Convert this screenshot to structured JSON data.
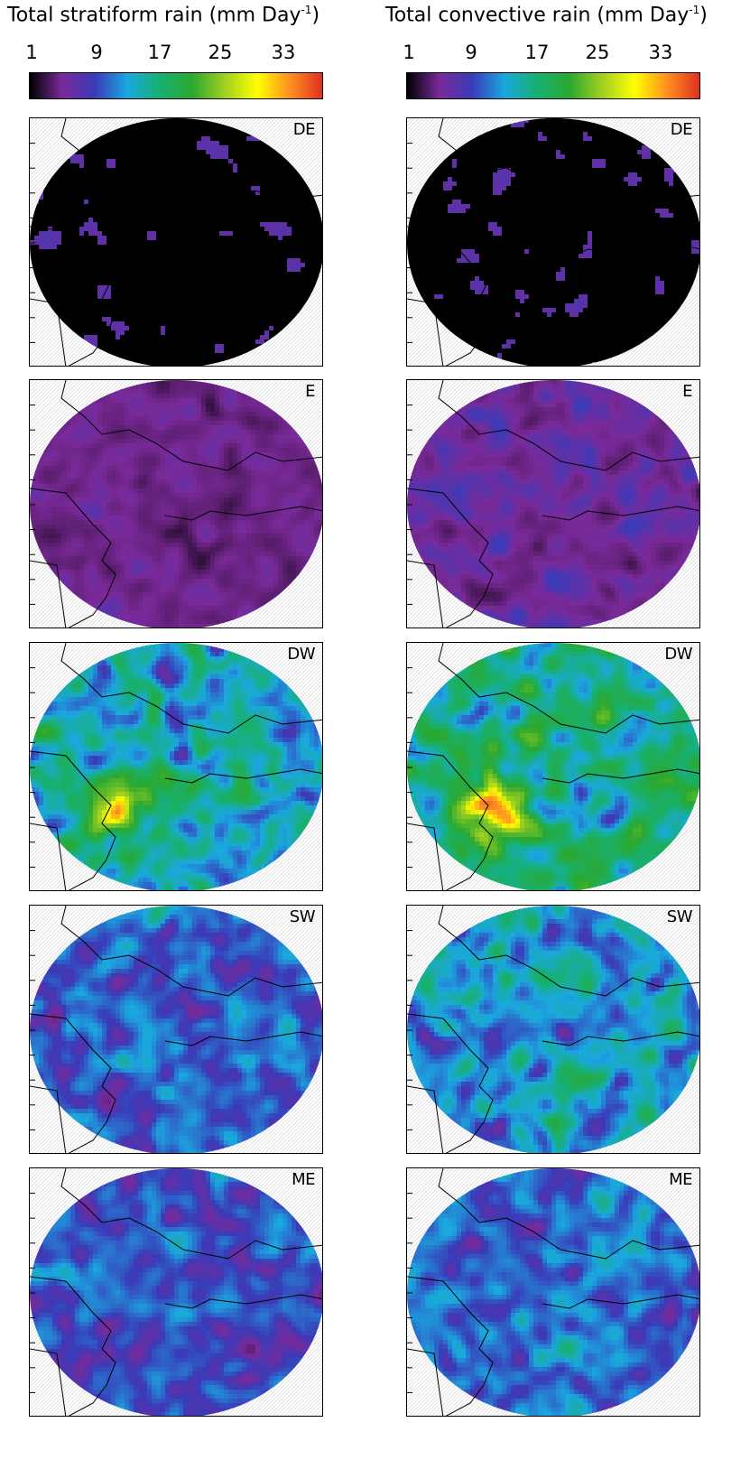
{
  "chart_data": {
    "type": "heatmap",
    "colorbar": {
      "ticks": [
        "1",
        "9",
        "17",
        "25",
        "33"
      ],
      "tick_values": [
        1,
        9,
        17,
        25,
        33
      ],
      "range": [
        1,
        39
      ],
      "colors": [
        "#000000",
        "#7a2a9a",
        "#3a3ab8",
        "#1aa8e0",
        "#18b070",
        "#2aa830",
        "#a0d020",
        "#ffff00",
        "#ff9020",
        "#e03020"
      ]
    },
    "columns": [
      {
        "title_main": "Total stratiform rain (mm Day",
        "title_sup": "-1",
        "title_end": ")"
      },
      {
        "title_main": "Total convective rain (mm Day",
        "title_sup": "-1",
        "title_end": ")"
      }
    ],
    "panels": [
      {
        "label": "DE",
        "stratiform_mean": 1,
        "convective_mean": 2
      },
      {
        "label": "E",
        "stratiform_mean": 5,
        "convective_mean": 6
      },
      {
        "label": "DW",
        "stratiform_mean": 15,
        "convective_mean": 16
      },
      {
        "label": "SW",
        "stratiform_mean": 11,
        "convective_mean": 13
      },
      {
        "label": "ME",
        "stratiform_mean": 10,
        "convective_mean": 11
      }
    ]
  }
}
